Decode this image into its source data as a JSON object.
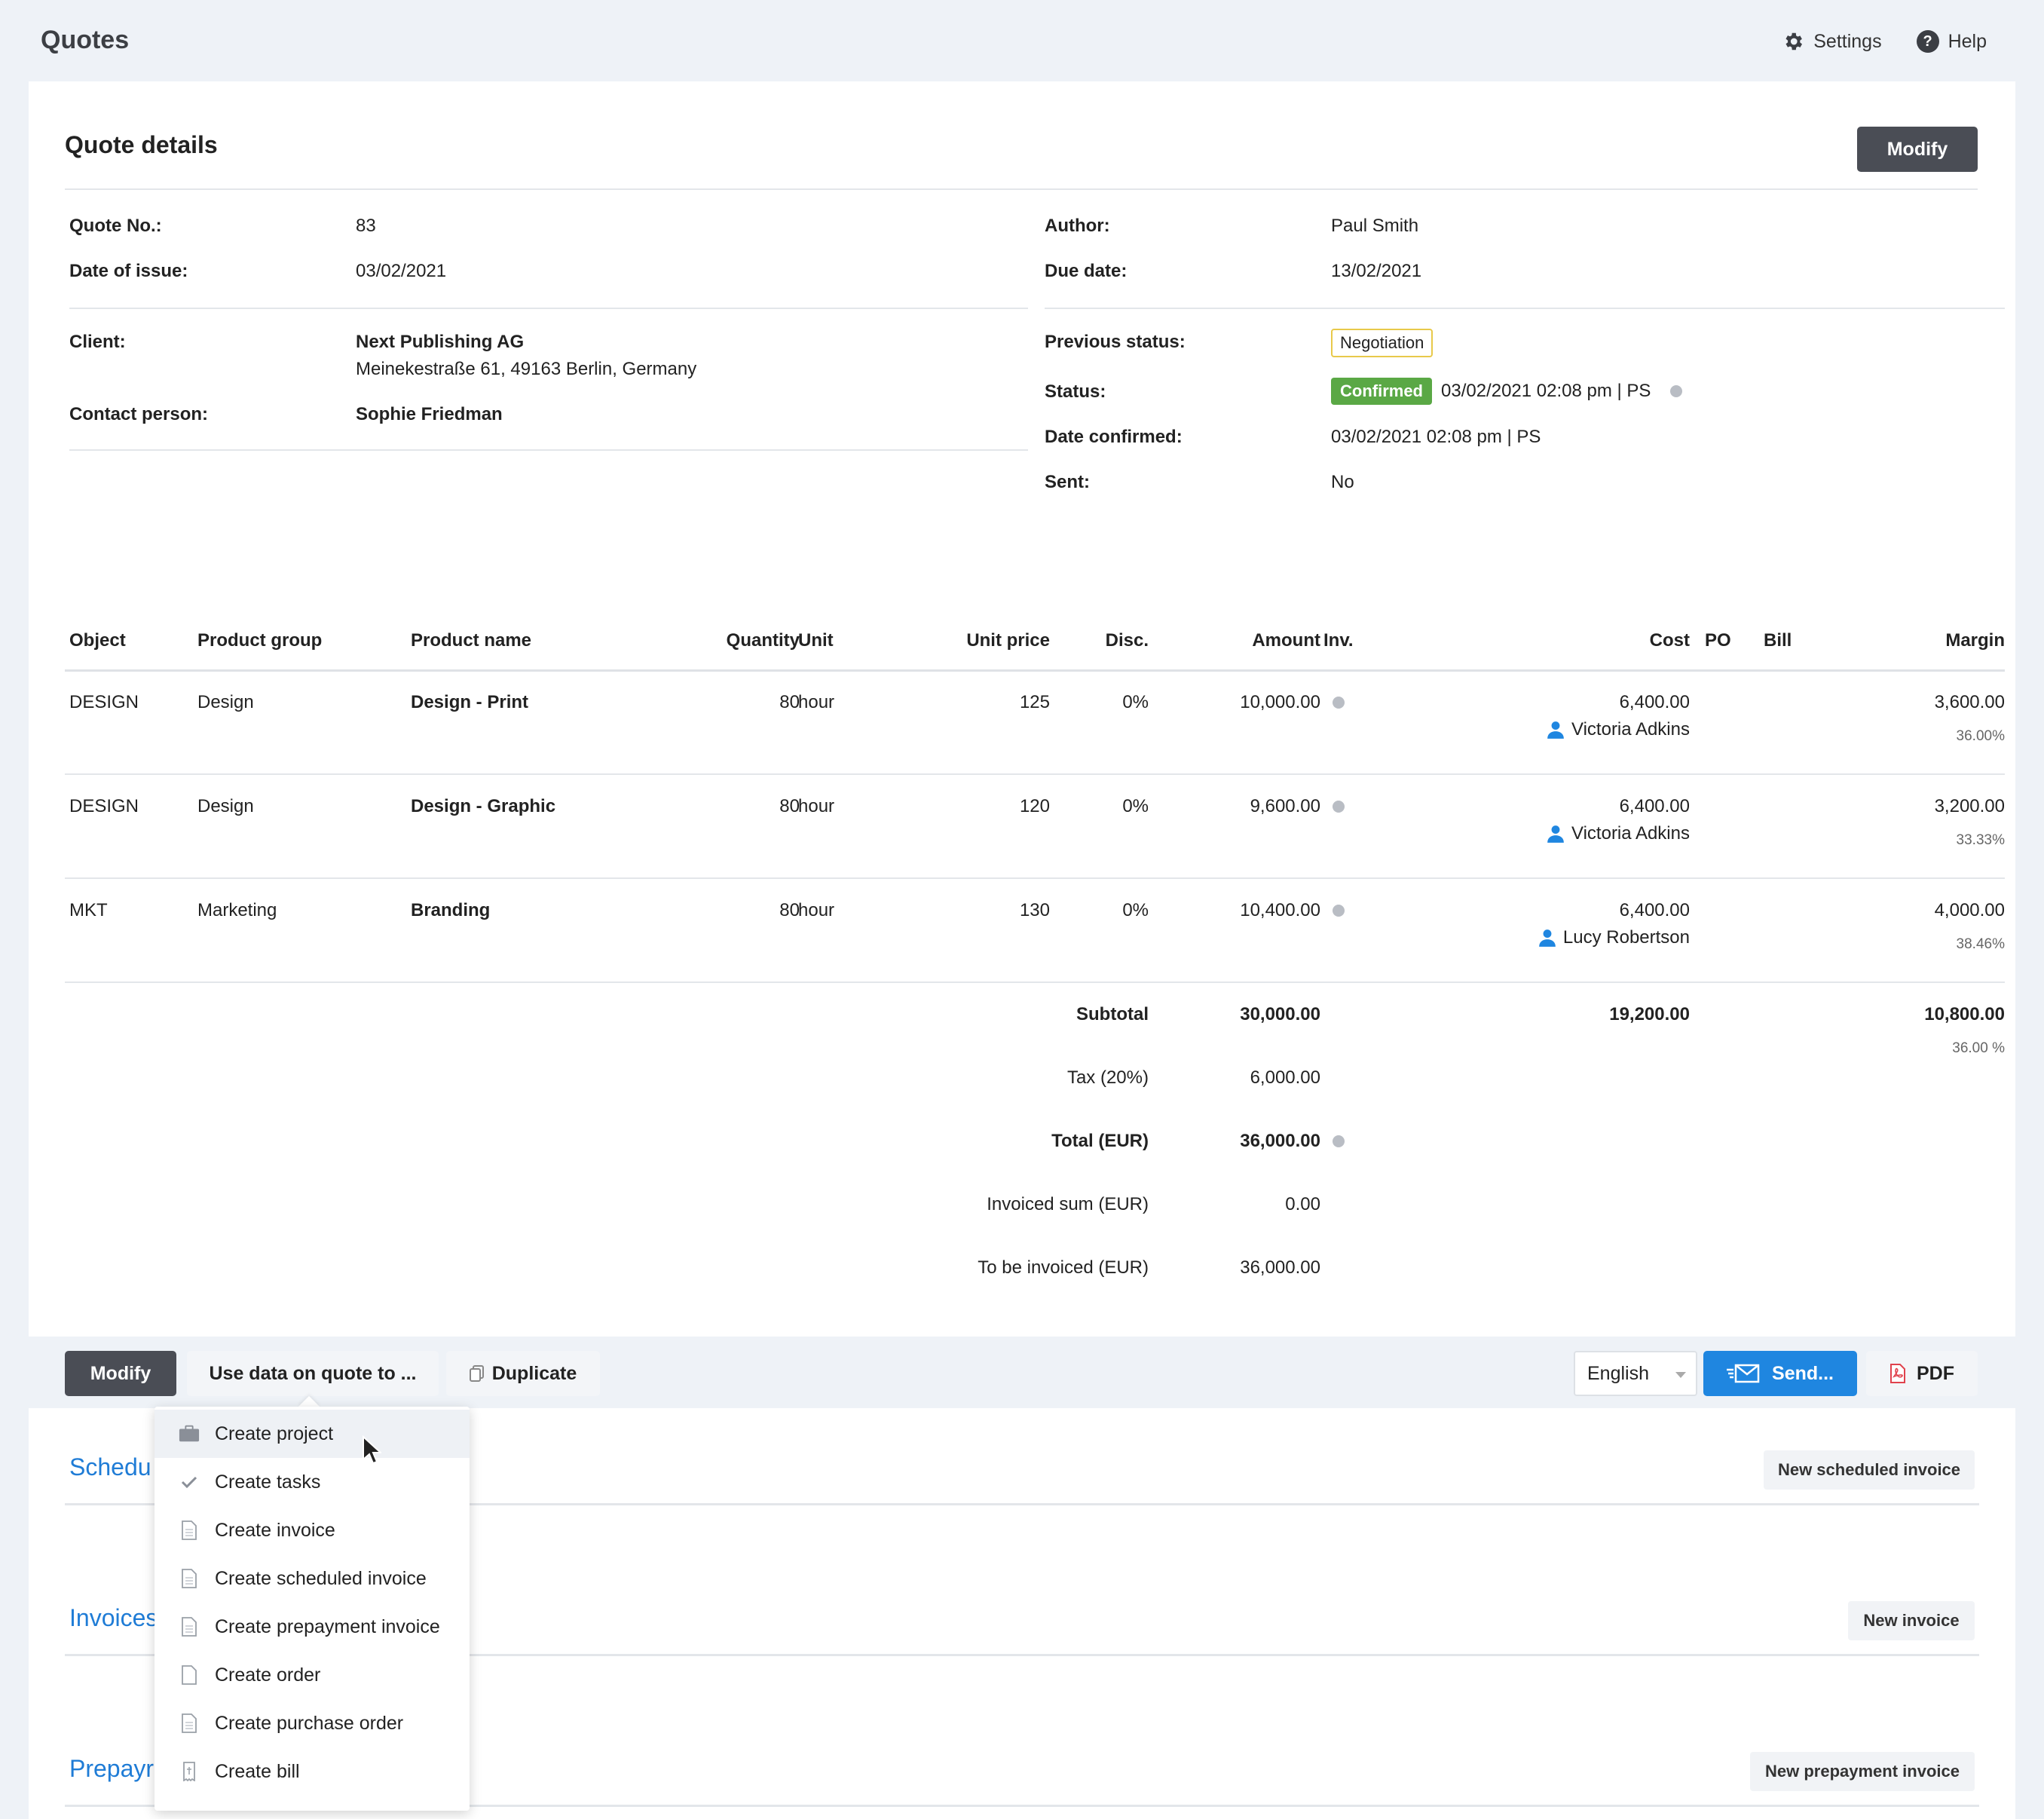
{
  "header": {
    "app_title": "Quotes",
    "settings_label": "Settings",
    "help_label": "Help"
  },
  "quote": {
    "title": "Quote details",
    "modify_label": "Modify",
    "left": {
      "quote_no_label": "Quote No.:",
      "quote_no": "83",
      "date_issue_label": "Date of issue:",
      "date_issue": "03/02/2021",
      "client_label": "Client:",
      "client_name": "Next Publishing AG",
      "client_address": "Meinekestraße 61, 49163 Berlin, Germany",
      "contact_label": "Contact person:",
      "contact": "Sophie Friedman"
    },
    "right": {
      "author_label": "Author:",
      "author": "Paul Smith",
      "due_label": "Due date:",
      "due": "13/02/2021",
      "prev_status_label": "Previous status:",
      "prev_status": "Negotiation",
      "status_label": "Status:",
      "status": "Confirmed",
      "status_meta": "03/02/2021 02:08 pm | PS",
      "date_confirmed_label": "Date confirmed:",
      "date_confirmed": "03/02/2021 02:08 pm | PS",
      "sent_label": "Sent:",
      "sent": "No"
    }
  },
  "table": {
    "headers": {
      "object": "Object",
      "group": "Product group",
      "name": "Product name",
      "qty": "Quantity",
      "unit": "Unit",
      "price": "Unit price",
      "disc": "Disc.",
      "amount": "Amount",
      "inv": "Inv.",
      "cost": "Cost",
      "po": "PO",
      "bill": "Bill",
      "margin": "Margin"
    },
    "rows": [
      {
        "object": "DESIGN",
        "group": "Design",
        "name": "Design - Print",
        "qty": "80",
        "unit": "hour",
        "price": "125",
        "disc": "0%",
        "amount": "10,000.00",
        "cost": "6,400.00",
        "person": "Victoria Adkins",
        "margin": "3,600.00",
        "margin_pct": "36.00%"
      },
      {
        "object": "DESIGN",
        "group": "Design",
        "name": "Design - Graphic",
        "qty": "80",
        "unit": "hour",
        "price": "120",
        "disc": "0%",
        "amount": "9,600.00",
        "cost": "6,400.00",
        "person": "Victoria Adkins",
        "margin": "3,200.00",
        "margin_pct": "33.33%"
      },
      {
        "object": "MKT",
        "group": "Marketing",
        "name": "Branding",
        "qty": "80",
        "unit": "hour",
        "price": "130",
        "disc": "0%",
        "amount": "10,400.00",
        "cost": "6,400.00",
        "person": "Lucy Robertson",
        "margin": "4,000.00",
        "margin_pct": "38.46%"
      }
    ],
    "totals": {
      "subtotal_label": "Subtotal",
      "subtotal": "30,000.00",
      "cost_total": "19,200.00",
      "margin_total": "10,800.00",
      "margin_total_pct": "36.00 %",
      "tax_label": "Tax (20%)",
      "tax": "6,000.00",
      "total_label": "Total (EUR)",
      "total": "36,000.00",
      "invoiced_label": "Invoiced sum (EUR)",
      "invoiced": "0.00",
      "tobe_label": "To be invoiced (EUR)",
      "tobe": "36,000.00"
    }
  },
  "toolbar": {
    "modify_label": "Modify",
    "use_data_label": "Use data on quote to ...",
    "duplicate_label": "Duplicate",
    "language": "English",
    "send_label": "Send...",
    "pdf_label": "PDF"
  },
  "sections": {
    "scheduled_title": "Schedu",
    "scheduled_btn": "New scheduled invoice",
    "invoices_title": "Invoices",
    "invoices_btn": "New invoice",
    "prepay_title": "Prepayr",
    "prepay_btn": "New prepayment invoice"
  },
  "menu": {
    "items": [
      {
        "label": "Create project",
        "icon": "briefcase-icon"
      },
      {
        "label": "Create tasks",
        "icon": "check-icon"
      },
      {
        "label": "Create invoice",
        "icon": "document-icon"
      },
      {
        "label": "Create scheduled invoice",
        "icon": "document-icon"
      },
      {
        "label": "Create prepayment invoice",
        "icon": "document-icon"
      },
      {
        "label": "Create order",
        "icon": "document-icon"
      },
      {
        "label": "Create purchase order",
        "icon": "document-icon"
      },
      {
        "label": "Create bill",
        "icon": "receipt-icon"
      }
    ]
  },
  "colors": {
    "accent_blue": "#1f86e0",
    "status_green": "#5aa845",
    "dark_button": "#4a4d55",
    "section_blue": "#1f7cd6"
  }
}
